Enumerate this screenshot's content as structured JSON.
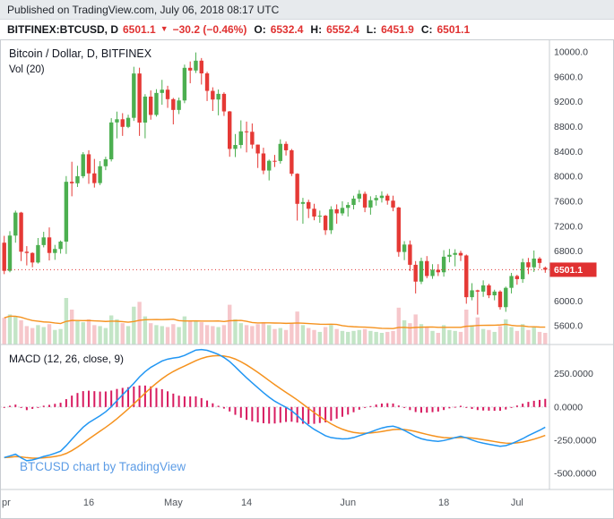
{
  "published": {
    "text": "Published on TradingView.com, July 06, 2018 08:17 UTC"
  },
  "quote_bar": {
    "symbol_text": "BITFINEX:BTCUSD, D",
    "last": "6501.1",
    "arrow": "▼",
    "change": "−30.2 (−0.46%)",
    "o_label": "O:",
    "o": "6532.4",
    "h_label": "H:",
    "h": "6552.4",
    "l_label": "L:",
    "l": "6451.9",
    "c_label": "C:",
    "c": "6501.1"
  },
  "legends": {
    "main": "Bitcoin / Dollar, D, BITFINEX",
    "volume": "Vol (20)",
    "macd": "MACD (12, 26, close, 9)",
    "watermark": "BTCUSD chart by TradingView"
  },
  "colors": {
    "up": "#4caf50",
    "down": "#e53935",
    "vol_up": "#c3e5c6",
    "vol_down": "#f6c7cb",
    "vol_ma": "#f5921e",
    "macd_line": "#2196f3",
    "signal_line": "#f5921e",
    "histogram": "#d81b60",
    "last_price": "#e03131",
    "watermark_blue": "#5c9ce6",
    "header_bg": "#e7eaed",
    "quote_red": "#e03131"
  },
  "chart_data": [
    {
      "type": "candlestick",
      "title": "Bitcoin / Dollar, D, BITFINEX",
      "symbol": "BITFINEX:BTCUSD",
      "interval": "D",
      "start_date": "2018-04-01",
      "end_date": "2018-07-06",
      "last_price": 6501.1,
      "ylim": [
        5300,
        10200
      ],
      "y_ticks": [
        10000,
        9600,
        9200,
        8800,
        8400,
        8000,
        7600,
        7200,
        6800,
        6000,
        5600
      ],
      "x_ticks": [
        {
          "index": 0,
          "label": "pr"
        },
        {
          "index": 15,
          "label": "16"
        },
        {
          "index": 30,
          "label": "May"
        },
        {
          "index": 43,
          "label": "14"
        },
        {
          "index": 61,
          "label": "Jun"
        },
        {
          "index": 78,
          "label": "18"
        },
        {
          "index": 91,
          "label": "Jul"
        }
      ],
      "ohlc": [
        [
          6935,
          7045,
          6430,
          6483
        ],
        [
          6483,
          7120,
          6460,
          7049
        ],
        [
          7049,
          7450,
          6935,
          7418
        ],
        [
          7418,
          7430,
          6640,
          6790
        ],
        [
          6790,
          6880,
          6570,
          6770
        ],
        [
          6770,
          6780,
          6540,
          6617
        ],
        [
          6617,
          7010,
          6600,
          6897
        ],
        [
          6897,
          7110,
          6860,
          7020
        ],
        [
          7020,
          7180,
          6650,
          6770
        ],
        [
          6770,
          6900,
          6660,
          6834
        ],
        [
          6834,
          6970,
          6760,
          6952
        ],
        [
          6952,
          8005,
          6755,
          7913
        ],
        [
          7913,
          8235,
          7680,
          7889
        ],
        [
          7889,
          8170,
          7830,
          8003
        ],
        [
          8003,
          8390,
          7970,
          8355
        ],
        [
          8355,
          8420,
          7880,
          8048
        ],
        [
          8048,
          8280,
          7820,
          7892
        ],
        [
          7892,
          8245,
          7860,
          8163
        ],
        [
          8163,
          8315,
          8100,
          8274
        ],
        [
          8274,
          8935,
          8240,
          8866
        ],
        [
          8866,
          9040,
          8610,
          8917
        ],
        [
          8917,
          9015,
          8650,
          8795
        ],
        [
          8795,
          8990,
          8775,
          8940
        ],
        [
          8940,
          9760,
          8890,
          9652
        ],
        [
          9652,
          9745,
          8650,
          8864
        ],
        [
          8864,
          9320,
          8611,
          9281
        ],
        [
          9281,
          9380,
          8910,
          8987
        ],
        [
          8987,
          9400,
          8960,
          9340
        ],
        [
          9340,
          9550,
          9150,
          9392
        ],
        [
          9392,
          9455,
          9100,
          9240
        ],
        [
          9240,
          9260,
          8835,
          9067
        ],
        [
          9067,
          9265,
          9000,
          9219
        ],
        [
          9219,
          9795,
          9175,
          9743
        ],
        [
          9743,
          9845,
          9495,
          9700
        ],
        [
          9700,
          9990,
          9660,
          9858
        ],
        [
          9858,
          9900,
          9475,
          9654
        ],
        [
          9654,
          9680,
          9210,
          9373
        ],
        [
          9373,
          9430,
          9050,
          9234
        ],
        [
          9234,
          9395,
          8980,
          9325
        ],
        [
          9325,
          9350,
          8970,
          9043
        ],
        [
          9043,
          9050,
          8315,
          8441
        ],
        [
          8441,
          8680,
          8310,
          8504
        ],
        [
          8504,
          8900,
          8450,
          8723
        ],
        [
          8723,
          8880,
          8385,
          8716
        ],
        [
          8716,
          8850,
          8445,
          8510
        ],
        [
          8510,
          8510,
          8135,
          8368
        ],
        [
          8368,
          8460,
          8035,
          8094
        ],
        [
          8094,
          8270,
          7935,
          8250
        ],
        [
          8250,
          8345,
          8150,
          8247
        ],
        [
          8247,
          8595,
          8205,
          8522
        ],
        [
          8522,
          8560,
          8335,
          8419
        ],
        [
          8419,
          8440,
          8005,
          8042
        ],
        [
          8042,
          8050,
          7290,
          7559
        ],
        [
          7559,
          7655,
          7240,
          7587
        ],
        [
          7587,
          7625,
          7330,
          7480
        ],
        [
          7480,
          7560,
          7295,
          7355
        ],
        [
          7355,
          7450,
          7255,
          7368
        ],
        [
          7368,
          7380,
          7060,
          7135
        ],
        [
          7135,
          7520,
          7075,
          7472
        ],
        [
          7472,
          7550,
          7240,
          7406
        ],
        [
          7406,
          7600,
          7370,
          7494
        ],
        [
          7494,
          7585,
          7355,
          7541
        ],
        [
          7541,
          7690,
          7470,
          7643
        ],
        [
          7643,
          7780,
          7585,
          7720
        ],
        [
          7720,
          7755,
          7425,
          7500
        ],
        [
          7500,
          7680,
          7385,
          7617
        ],
        [
          7617,
          7700,
          7530,
          7653
        ],
        [
          7653,
          7760,
          7580,
          7690
        ],
        [
          7690,
          7720,
          7545,
          7610
        ],
        [
          7610,
          7690,
          7440,
          7500
        ],
        [
          7500,
          7510,
          6710,
          6786
        ],
        [
          6786,
          6960,
          6655,
          6905
        ],
        [
          6905,
          6970,
          6480,
          6580
        ],
        [
          6580,
          6640,
          6120,
          6310
        ],
        [
          6310,
          6695,
          6270,
          6640
        ],
        [
          6640,
          6720,
          6365,
          6400
        ],
        [
          6400,
          6590,
          6355,
          6500
        ],
        [
          6500,
          6590,
          6400,
          6460
        ],
        [
          6460,
          6815,
          6390,
          6710
        ],
        [
          6710,
          6835,
          6620,
          6740
        ],
        [
          6740,
          6830,
          6555,
          6770
        ],
        [
          6770,
          6805,
          6640,
          6730
        ],
        [
          6730,
          6745,
          5955,
          6060
        ],
        [
          6060,
          6285,
          6010,
          6170
        ],
        [
          6170,
          6180,
          5780,
          6150
        ],
        [
          6150,
          6330,
          6065,
          6250
        ],
        [
          6250,
          6275,
          6045,
          6090
        ],
        [
          6090,
          6180,
          6010,
          6150
        ],
        [
          6150,
          6170,
          5860,
          5900
        ],
        [
          5900,
          6230,
          5825,
          6210
        ],
        [
          6210,
          6450,
          6120,
          6400
        ],
        [
          6400,
          6420,
          6260,
          6350
        ],
        [
          6350,
          6680,
          6290,
          6620
        ],
        [
          6620,
          6690,
          6430,
          6540
        ],
        [
          6540,
          6810,
          6465,
          6680
        ],
        [
          6680,
          6705,
          6520,
          6610
        ],
        [
          6532.4,
          6552.4,
          6451.9,
          6501.1
        ]
      ]
    },
    {
      "type": "bar",
      "name": "Vol (20)",
      "ma_period": 20,
      "values": [
        55,
        62,
        58,
        50,
        38,
        34,
        40,
        36,
        42,
        30,
        32,
        96,
        72,
        48,
        46,
        52,
        40,
        38,
        34,
        60,
        52,
        44,
        38,
        78,
        88,
        58,
        44,
        40,
        38,
        36,
        42,
        36,
        58,
        50,
        48,
        46,
        40,
        38,
        36,
        40,
        82,
        52,
        44,
        40,
        38,
        42,
        46,
        40,
        32,
        34,
        30,
        44,
        68,
        40,
        34,
        30,
        26,
        36,
        40,
        32,
        28,
        26,
        28,
        30,
        32,
        28,
        26,
        24,
        26,
        28,
        76,
        50,
        44,
        62,
        42,
        36,
        28,
        24,
        40,
        30,
        28,
        26,
        72,
        40,
        56,
        32,
        30,
        26,
        38,
        52,
        36,
        28,
        42,
        30,
        36,
        26,
        24
      ]
    },
    {
      "type": "macd",
      "name": "MACD (12, 26, close, 9)",
      "params": [
        12,
        26,
        9
      ],
      "signal_period": 9,
      "ylim": [
        -620,
        470
      ],
      "y_ticks": [
        250,
        0,
        -250,
        -500
      ],
      "macd_line": [
        -380,
        -368,
        -355,
        -382,
        -404,
        -398,
        -386,
        -372,
        -362,
        -348,
        -332,
        -290,
        -242,
        -196,
        -152,
        -118,
        -92,
        -66,
        -36,
        2,
        48,
        92,
        134,
        178,
        226,
        266,
        298,
        322,
        346,
        360,
        368,
        374,
        388,
        408,
        428,
        432,
        426,
        412,
        396,
        372,
        342,
        302,
        260,
        220,
        182,
        145,
        108,
        74,
        44,
        20,
        -2,
        -28,
        -64,
        -104,
        -138,
        -168,
        -192,
        -216,
        -230,
        -236,
        -240,
        -238,
        -230,
        -216,
        -202,
        -188,
        -172,
        -158,
        -148,
        -144,
        -156,
        -176,
        -198,
        -222,
        -238,
        -248,
        -254,
        -258,
        -252,
        -242,
        -230,
        -220,
        -232,
        -248,
        -262,
        -272,
        -280,
        -288,
        -295,
        -290,
        -276,
        -258,
        -238,
        -215,
        -195,
        -175,
        -152
      ]
    }
  ]
}
